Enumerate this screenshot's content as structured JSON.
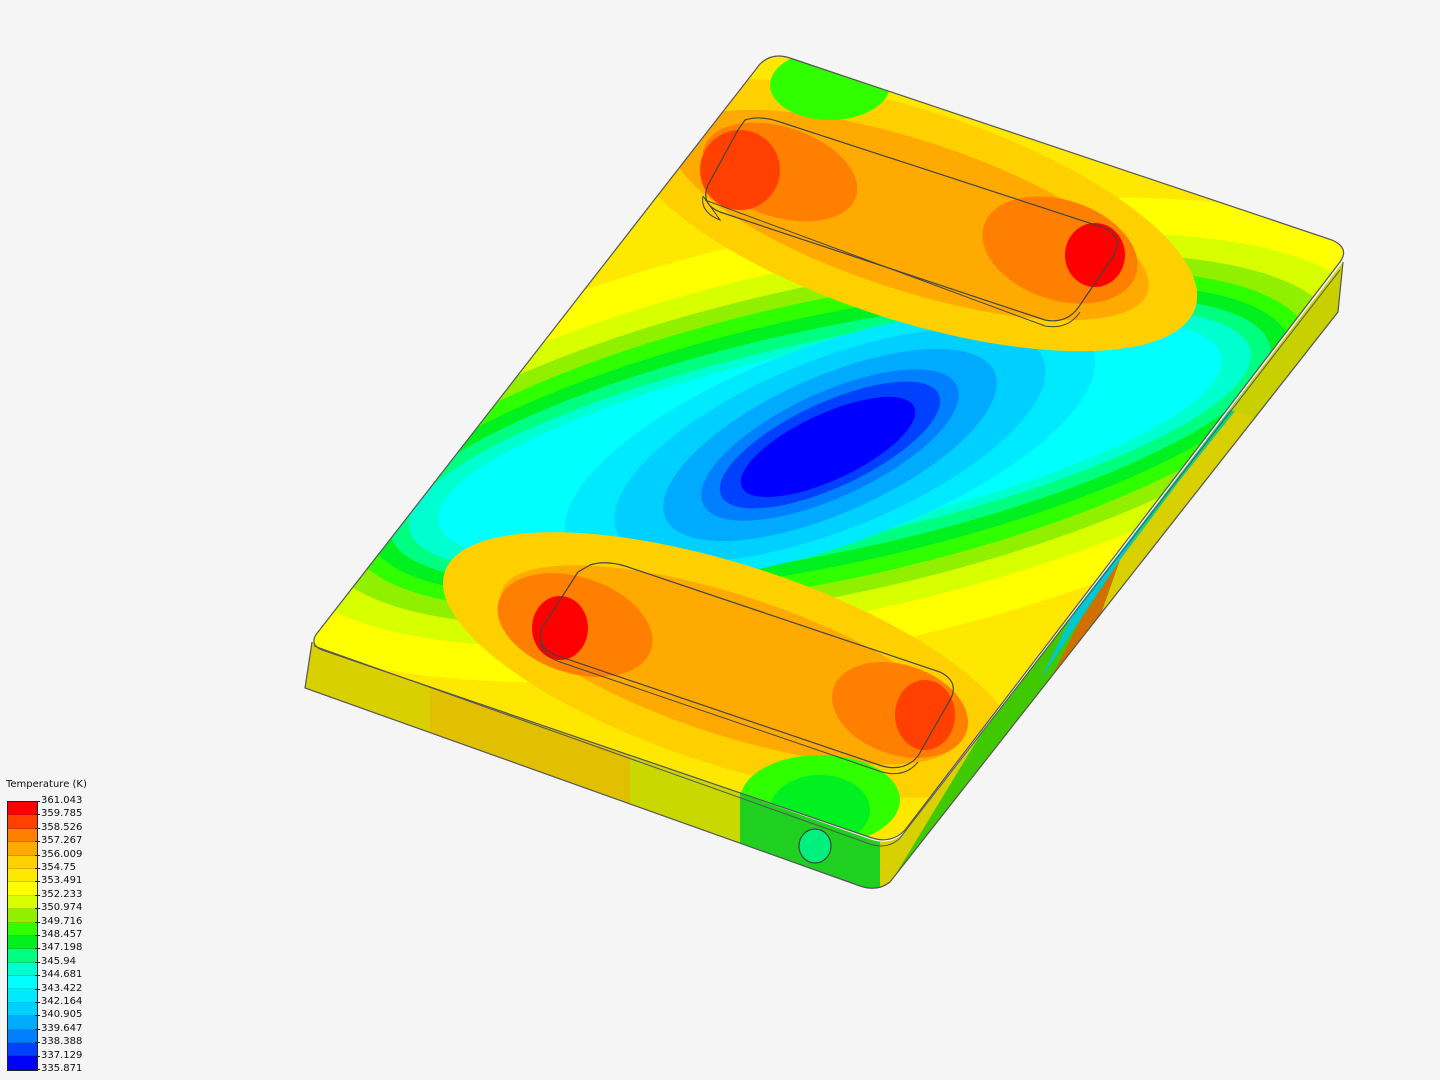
{
  "legend": {
    "title": "Temperature (K)",
    "labels": [
      "361.043",
      "359.785",
      "358.526",
      "357.267",
      "356.009",
      "354.75",
      "353.491",
      "352.233",
      "350.974",
      "349.716",
      "348.457",
      "347.198",
      "345.94",
      "344.681",
      "343.422",
      "342.164",
      "340.905",
      "339.647",
      "338.388",
      "337.129",
      "335.871"
    ],
    "colors": [
      "#ff0000",
      "#ff4000",
      "#ff8000",
      "#ffaa00",
      "#ffd000",
      "#ffe800",
      "#ffff00",
      "#d8ff00",
      "#90f000",
      "#30ff00",
      "#00f020",
      "#00ff80",
      "#00ffd0",
      "#00ffff",
      "#00eaff",
      "#00d0ff",
      "#00aaff",
      "#0080ff",
      "#0040ff",
      "#0000ff"
    ]
  }
}
